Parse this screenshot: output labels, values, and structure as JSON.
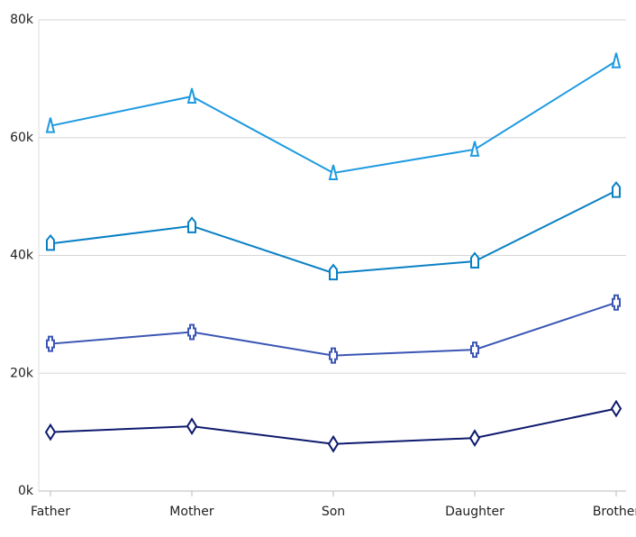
{
  "chart_data": {
    "type": "line",
    "categories": [
      "Father",
      "Mother",
      "Son",
      "Daughter",
      "Brother"
    ],
    "series": [
      {
        "color": "#1e9ae0",
        "marker": "triangle",
        "values": [
          62000,
          67000,
          54000,
          58000,
          73000
        ]
      },
      {
        "color": "#0a80c4",
        "marker": "pentagon",
        "values": [
          42000,
          45000,
          37000,
          39000,
          51000
        ]
      },
      {
        "color": "#3a55b4",
        "marker": "plus",
        "values": [
          25000,
          27000,
          23000,
          24000,
          32000
        ]
      },
      {
        "color": "#0e1a6e",
        "marker": "diamond",
        "values": [
          10000,
          11000,
          8000,
          9000,
          14000
        ]
      }
    ],
    "ylim": [
      0,
      80000
    ],
    "yticks": [
      {
        "value": 0,
        "label": "0k"
      },
      {
        "value": 20000,
        "label": "20k"
      },
      {
        "value": 40000,
        "label": "40k"
      },
      {
        "value": 60000,
        "label": "60k"
      },
      {
        "value": 80000,
        "label": "80k"
      }
    ],
    "grid": true
  }
}
